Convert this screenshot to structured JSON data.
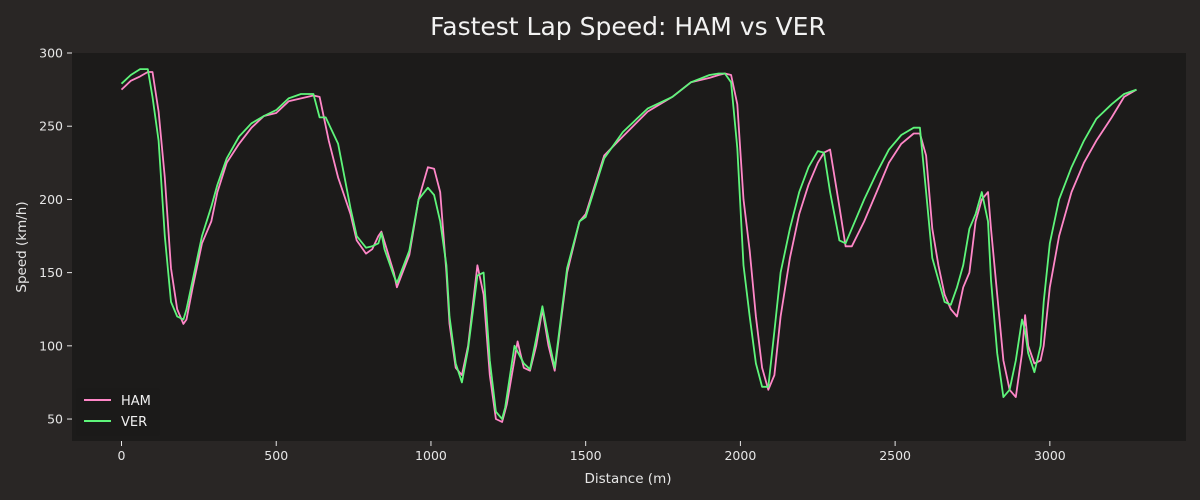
{
  "chart_data": {
    "type": "line",
    "title": "Fastest Lap Speed: HAM vs VER",
    "xlabel": "Distance (m)",
    "ylabel": "Speed (km/h)",
    "xlim": [
      -160,
      3440
    ],
    "ylim": [
      35,
      300
    ],
    "xticks": [
      0,
      500,
      1000,
      1500,
      2000,
      2500,
      3000
    ],
    "yticks": [
      50,
      100,
      150,
      200,
      250,
      300
    ],
    "grid": false,
    "legend": "lower-left",
    "colors": {
      "figure_bg": "#292625",
      "plot_bg": "#1c1b1a",
      "ham": "#ff87c8",
      "ver": "#5ef57a",
      "text": "#e6e6e6"
    },
    "series": [
      {
        "name": "HAM",
        "color": "#ff87c8",
        "x": [
          0,
          30,
          60,
          85,
          100,
          120,
          140,
          160,
          180,
          200,
          210,
          230,
          260,
          290,
          310,
          340,
          380,
          420,
          460,
          500,
          540,
          580,
          620,
          640,
          670,
          700,
          740,
          760,
          790,
          810,
          830,
          840,
          850,
          880,
          890,
          930,
          960,
          990,
          1010,
          1030,
          1050,
          1060,
          1080,
          1100,
          1120,
          1150,
          1170,
          1190,
          1210,
          1230,
          1245,
          1280,
          1300,
          1320,
          1340,
          1360,
          1380,
          1400,
          1440,
          1480,
          1500,
          1560,
          1620,
          1700,
          1780,
          1840,
          1900,
          1930,
          1950,
          1970,
          1990,
          2010,
          2030,
          2050,
          2070,
          2090,
          2110,
          2130,
          2160,
          2190,
          2220,
          2250,
          2270,
          2290,
          2320,
          2340,
          2360,
          2400,
          2440,
          2480,
          2520,
          2560,
          2580,
          2600,
          2620,
          2640,
          2660,
          2680,
          2700,
          2720,
          2740,
          2760,
          2780,
          2800,
          2810,
          2830,
          2850,
          2870,
          2890,
          2910,
          2920,
          2930,
          2950,
          2970,
          2980,
          3000,
          3030,
          3070,
          3110,
          3150,
          3200,
          3240,
          3280
        ],
        "values": [
          275,
          281,
          284,
          287,
          287,
          260,
          215,
          153,
          125,
          115,
          118,
          140,
          170,
          185,
          205,
          225,
          238,
          249,
          257,
          259,
          267,
          269,
          271,
          270,
          240,
          215,
          190,
          172,
          163,
          166,
          175,
          178,
          171,
          150,
          140,
          162,
          200,
          222,
          221,
          205,
          150,
          115,
          85,
          80,
          100,
          155,
          135,
          80,
          50,
          48,
          60,
          103,
          85,
          83,
          100,
          125,
          100,
          83,
          150,
          185,
          190,
          230,
          243,
          260,
          270,
          280,
          283,
          285,
          286,
          285,
          265,
          200,
          165,
          120,
          85,
          70,
          80,
          120,
          160,
          190,
          210,
          225,
          232,
          234,
          195,
          168,
          168,
          185,
          205,
          225,
          238,
          245,
          245,
          230,
          180,
          155,
          135,
          125,
          120,
          140,
          150,
          185,
          200,
          205,
          180,
          135,
          90,
          70,
          65,
          95,
          121,
          100,
          88,
          90,
          100,
          140,
          175,
          205,
          225,
          240,
          256,
          270,
          275
        ]
      },
      {
        "name": "VER",
        "color": "#5ef57a",
        "x": [
          0,
          30,
          60,
          85,
          100,
          120,
          140,
          160,
          180,
          200,
          210,
          230,
          260,
          290,
          310,
          340,
          380,
          420,
          460,
          500,
          540,
          580,
          620,
          640,
          660,
          700,
          740,
          760,
          790,
          810,
          830,
          840,
          850,
          880,
          890,
          930,
          960,
          990,
          1010,
          1030,
          1050,
          1060,
          1080,
          1100,
          1120,
          1150,
          1170,
          1190,
          1210,
          1230,
          1240,
          1270,
          1300,
          1320,
          1340,
          1360,
          1380,
          1400,
          1440,
          1480,
          1500,
          1560,
          1620,
          1700,
          1780,
          1840,
          1900,
          1930,
          1950,
          1970,
          1990,
          2010,
          2030,
          2050,
          2070,
          2090,
          2110,
          2130,
          2160,
          2190,
          2220,
          2250,
          2270,
          2290,
          2320,
          2340,
          2360,
          2400,
          2440,
          2480,
          2520,
          2560,
          2580,
          2600,
          2620,
          2640,
          2660,
          2680,
          2700,
          2720,
          2740,
          2760,
          2780,
          2800,
          2810,
          2830,
          2850,
          2870,
          2890,
          2910,
          2920,
          2930,
          2950,
          2970,
          2980,
          3000,
          3030,
          3070,
          3110,
          3150,
          3200,
          3240,
          3280
        ],
        "values": [
          279,
          285,
          289,
          289,
          270,
          240,
          175,
          130,
          120,
          118,
          125,
          145,
          175,
          195,
          210,
          228,
          243,
          252,
          257,
          261,
          269,
          272,
          272,
          256,
          256,
          238,
          194,
          175,
          167,
          168,
          170,
          177,
          166,
          148,
          143,
          165,
          200,
          208,
          203,
          185,
          155,
          120,
          88,
          75,
          98,
          148,
          150,
          90,
          55,
          50,
          58,
          100,
          88,
          84,
          105,
          127,
          105,
          85,
          153,
          185,
          188,
          228,
          246,
          262,
          270,
          280,
          285,
          286,
          286,
          280,
          235,
          155,
          120,
          88,
          72,
          72,
          110,
          150,
          180,
          205,
          222,
          233,
          232,
          205,
          172,
          170,
          180,
          200,
          218,
          234,
          244,
          249,
          249,
          205,
          160,
          145,
          130,
          128,
          140,
          155,
          180,
          190,
          205,
          185,
          145,
          95,
          65,
          70,
          90,
          118,
          110,
          95,
          82,
          100,
          130,
          170,
          200,
          222,
          240,
          255,
          265,
          272,
          275
        ]
      }
    ]
  }
}
